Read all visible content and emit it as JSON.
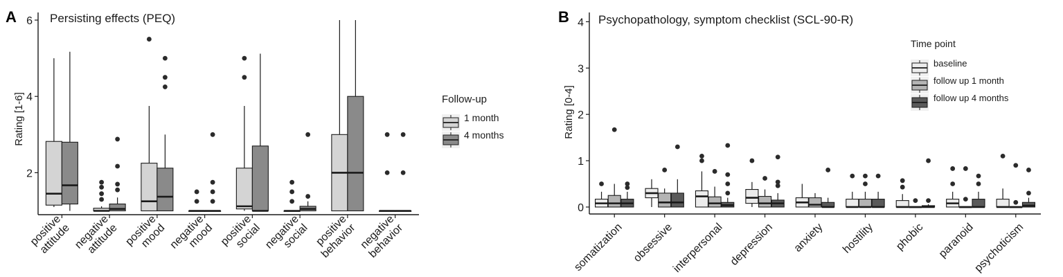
{
  "chart_data": [
    {
      "panel_label": "A",
      "type": "boxplot",
      "title": "Persisting effects (PEQ)",
      "ylabel": "Rating [1-6]",
      "xlabel": "",
      "ylim": [
        0.9,
        6.2
      ],
      "yticks": [
        2,
        4,
        6
      ],
      "legend": {
        "title": "Follow-up",
        "placement": "right"
      },
      "categories": [
        [
          "positive",
          "attitude"
        ],
        [
          "negative",
          "attitude"
        ],
        [
          "positive",
          "mood"
        ],
        [
          "negative",
          "mood"
        ],
        [
          "positive",
          "social"
        ],
        [
          "negative",
          "social"
        ],
        [
          "positive",
          "behavior"
        ],
        [
          "negative",
          "behavior"
        ]
      ],
      "series": [
        {
          "name": "1 month",
          "color": "#d4d4d4",
          "boxes": [
            {
              "wlo": 1.1,
              "q1": 1.15,
              "med": 1.45,
              "q3": 2.82,
              "whi": 5.0,
              "out": []
            },
            {
              "wlo": 1.0,
              "q1": 1.0,
              "med": 1.0,
              "q3": 1.07,
              "whi": 1.12,
              "out": [
                1.3,
                1.45,
                1.62,
                1.75
              ]
            },
            {
              "wlo": 1.0,
              "q1": 1.0,
              "med": 1.25,
              "q3": 2.25,
              "whi": 3.75,
              "out": [
                5.5
              ]
            },
            {
              "wlo": 1.0,
              "q1": 1.0,
              "med": 1.0,
              "q3": 1.0,
              "whi": 1.0,
              "out": [
                1.25,
                1.5
              ]
            },
            {
              "wlo": 1.0,
              "q1": 1.05,
              "med": 1.12,
              "q3": 2.12,
              "whi": 3.75,
              "out": [
                4.5,
                5.0
              ]
            },
            {
              "wlo": 1.0,
              "q1": 1.0,
              "med": 1.0,
              "q3": 1.0,
              "whi": 1.0,
              "out": [
                1.25,
                1.5,
                1.75
              ]
            },
            {
              "wlo": 1.0,
              "q1": 1.0,
              "med": 2.0,
              "q3": 3.0,
              "whi": 6.0,
              "out": []
            },
            {
              "wlo": 1.0,
              "q1": 1.0,
              "med": 1.0,
              "q3": 1.0,
              "whi": 1.0,
              "out": [
                2.0,
                3.0
              ]
            }
          ]
        },
        {
          "name": "4 months",
          "color": "#8a8a8a",
          "boxes": [
            {
              "wlo": 1.0,
              "q1": 1.18,
              "med": 1.67,
              "q3": 2.8,
              "whi": 5.17,
              "out": []
            },
            {
              "wlo": 1.0,
              "q1": 1.0,
              "med": 1.05,
              "q3": 1.18,
              "whi": 1.35,
              "out": [
                1.55,
                1.7,
                2.17,
                2.88
              ]
            },
            {
              "wlo": 1.0,
              "q1": 1.0,
              "med": 1.37,
              "q3": 2.12,
              "whi": 3.0,
              "out": [
                4.25,
                4.5,
                5.0
              ]
            },
            {
              "wlo": 1.0,
              "q1": 1.0,
              "med": 1.0,
              "q3": 1.0,
              "whi": 1.0,
              "out": [
                1.25,
                1.5,
                1.75,
                3.0
              ]
            },
            {
              "wlo": 1.0,
              "q1": 1.0,
              "med": 1.0,
              "q3": 2.7,
              "whi": 5.12,
              "out": []
            },
            {
              "wlo": 1.0,
              "q1": 1.0,
              "med": 1.05,
              "q3": 1.12,
              "whi": 1.25,
              "out": [
                1.38,
                3.0
              ]
            },
            {
              "wlo": 1.0,
              "q1": 1.0,
              "med": 2.0,
              "q3": 4.0,
              "whi": 6.0,
              "out": []
            },
            {
              "wlo": 1.0,
              "q1": 1.0,
              "med": 1.0,
              "q3": 1.0,
              "whi": 1.0,
              "out": [
                2.0,
                3.0
              ]
            }
          ]
        }
      ]
    },
    {
      "panel_label": "B",
      "type": "boxplot",
      "title": "Psychopathology, symptom checklist (SCL-90-R)",
      "ylabel": "Rating [0-4]",
      "xlabel": "",
      "ylim": [
        -0.15,
        4.2
      ],
      "yticks": [
        0,
        1,
        2,
        3,
        4
      ],
      "legend": {
        "title": "Time point",
        "placement": "top-right"
      },
      "categories": [
        "somatization",
        "obsessive",
        "interpersonal",
        "depression",
        "anxiety",
        "hostility",
        "phobic",
        "paranoid",
        "psychoticism"
      ],
      "series": [
        {
          "name": "baseline",
          "color": "#ececec",
          "boxes": [
            {
              "wlo": 0.0,
              "q1": 0.0,
              "med": 0.08,
              "q3": 0.17,
              "whi": 0.33,
              "out": [
                0.5
              ]
            },
            {
              "wlo": 0.0,
              "q1": 0.2,
              "med": 0.3,
              "q3": 0.4,
              "whi": 0.6,
              "out": []
            },
            {
              "wlo": 0.0,
              "q1": 0.0,
              "med": 0.23,
              "q3": 0.35,
              "whi": 0.77,
              "out": [
                1.0,
                1.1
              ]
            },
            {
              "wlo": 0.0,
              "q1": 0.08,
              "med": 0.2,
              "q3": 0.38,
              "whi": 0.54,
              "out": [
                1.0
              ]
            },
            {
              "wlo": 0.0,
              "q1": 0.0,
              "med": 0.1,
              "q3": 0.2,
              "whi": 0.5,
              "out": []
            },
            {
              "wlo": 0.0,
              "q1": 0.0,
              "med": 0.0,
              "q3": 0.17,
              "whi": 0.33,
              "out": [
                0.67
              ]
            },
            {
              "wlo": 0.0,
              "q1": 0.0,
              "med": 0.0,
              "q3": 0.14,
              "whi": 0.28,
              "out": [
                0.43,
                0.57
              ]
            },
            {
              "wlo": 0.0,
              "q1": 0.0,
              "med": 0.08,
              "q3": 0.17,
              "whi": 0.33,
              "out": [
                0.5,
                0.83
              ]
            },
            {
              "wlo": 0.0,
              "q1": 0.0,
              "med": 0.0,
              "q3": 0.17,
              "whi": 0.4,
              "out": [
                1.1
              ]
            }
          ]
        },
        {
          "name": "follow up 1 month",
          "color": "#b4b4b4",
          "boxes": [
            {
              "wlo": 0.0,
              "q1": 0.0,
              "med": 0.08,
              "q3": 0.25,
              "whi": 0.5,
              "out": [
                1.67
              ]
            },
            {
              "wlo": 0.0,
              "q1": 0.0,
              "med": 0.1,
              "q3": 0.3,
              "whi": 0.4,
              "out": [
                0.8
              ]
            },
            {
              "wlo": 0.0,
              "q1": 0.0,
              "med": 0.08,
              "q3": 0.22,
              "whi": 0.44,
              "out": [
                0.77
              ]
            },
            {
              "wlo": 0.0,
              "q1": 0.0,
              "med": 0.08,
              "q3": 0.23,
              "whi": 0.38,
              "out": [
                0.62
              ]
            },
            {
              "wlo": 0.0,
              "q1": 0.0,
              "med": 0.05,
              "q3": 0.2,
              "whi": 0.3,
              "out": []
            },
            {
              "wlo": 0.0,
              "q1": 0.0,
              "med": 0.0,
              "q3": 0.17,
              "whi": 0.33,
              "out": [
                0.5,
                0.67
              ]
            },
            {
              "wlo": 0.0,
              "q1": 0.0,
              "med": 0.0,
              "q3": 0.0,
              "whi": 0.0,
              "out": [
                0.14
              ]
            },
            {
              "wlo": 0.0,
              "q1": 0.0,
              "med": 0.0,
              "q3": 0.0,
              "whi": 0.0,
              "out": [
                0.17,
                0.83
              ]
            },
            {
              "wlo": 0.0,
              "q1": 0.0,
              "med": 0.0,
              "q3": 0.0,
              "whi": 0.0,
              "out": [
                0.1,
                0.9
              ]
            }
          ]
        },
        {
          "name": "follow up 4 months",
          "color": "#5a5a5a",
          "boxes": [
            {
              "wlo": 0.0,
              "q1": 0.0,
              "med": 0.08,
              "q3": 0.17,
              "whi": 0.33,
              "out": [
                0.42,
                0.5
              ]
            },
            {
              "wlo": 0.0,
              "q1": 0.0,
              "med": 0.1,
              "q3": 0.3,
              "whi": 0.6,
              "out": [
                1.3
              ]
            },
            {
              "wlo": 0.0,
              "q1": 0.0,
              "med": 0.04,
              "q3": 0.1,
              "whi": 0.2,
              "out": [
                0.3,
                0.5,
                0.7,
                1.33
              ]
            },
            {
              "wlo": 0.0,
              "q1": 0.0,
              "med": 0.08,
              "q3": 0.15,
              "whi": 0.3,
              "out": [
                0.46,
                0.54,
                1.08
              ]
            },
            {
              "wlo": 0.0,
              "q1": 0.0,
              "med": 0.0,
              "q3": 0.1,
              "whi": 0.2,
              "out": [
                0.8
              ]
            },
            {
              "wlo": 0.0,
              "q1": 0.0,
              "med": 0.0,
              "q3": 0.17,
              "whi": 0.33,
              "out": [
                0.67
              ]
            },
            {
              "wlo": 0.0,
              "q1": 0.0,
              "med": 0.0,
              "q3": 0.03,
              "whi": 0.06,
              "out": [
                0.14,
                1.0
              ]
            },
            {
              "wlo": 0.0,
              "q1": 0.0,
              "med": 0.0,
              "q3": 0.17,
              "whi": 0.33,
              "out": [
                0.5,
                0.67
              ]
            },
            {
              "wlo": 0.0,
              "q1": 0.0,
              "med": 0.03,
              "q3": 0.1,
              "whi": 0.2,
              "out": [
                0.3,
                0.8
              ]
            }
          ]
        }
      ]
    }
  ]
}
